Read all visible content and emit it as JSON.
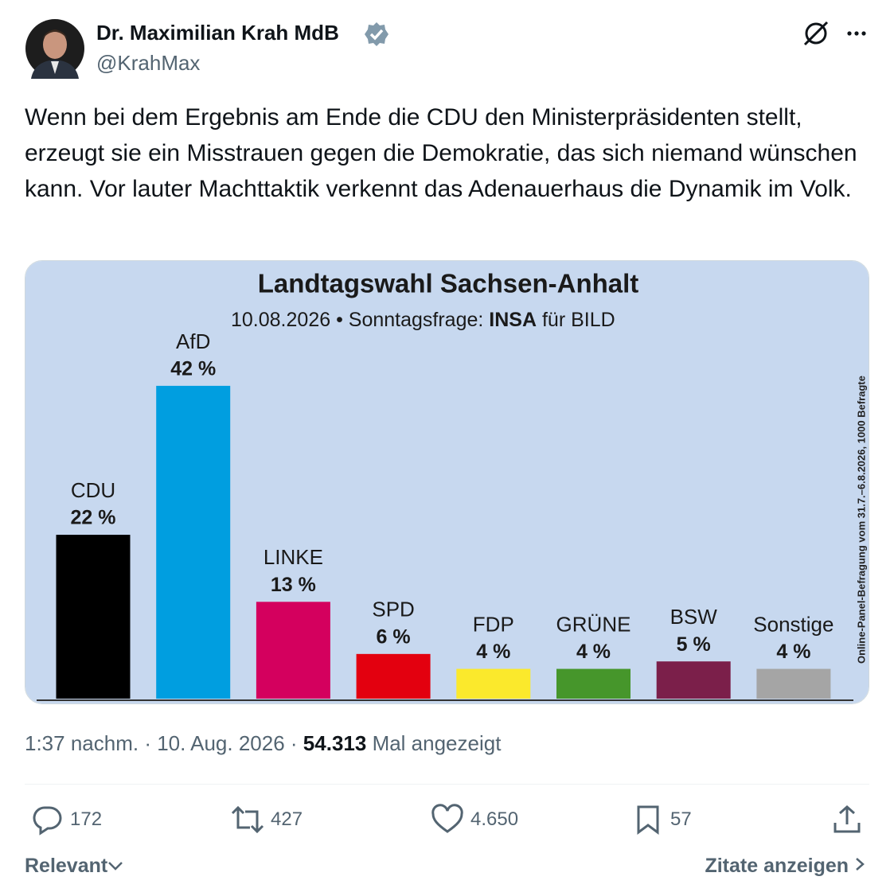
{
  "header": {
    "name": "Dr. Maximilian Krah MdB",
    "handle": "@KrahMax"
  },
  "text": "Wenn bei dem Ergebnis am Ende die CDU den Ministerpräsidenten stellt, erzeugt sie ein Misstrauen gegen die Demokratie, das sich niemand wünschen kann. Vor lauter Machttaktik verkennt das Adenauerhaus die Dynamik im Volk.",
  "chart_data": {
    "type": "bar",
    "title": "Landtagswahl Sachsen-Anhalt",
    "subtitle": [
      "10.08.2026 • Sonntagsfrage:",
      "INSA",
      "für BILD"
    ],
    "note": "Online-Panel-Befragung vom 31.7.–6.8.2026, 1000 Befragte",
    "categories": [
      "CDU",
      "AfD",
      "LINKE",
      "SPD",
      "FDP",
      "GRÜNE",
      "BSW",
      "Sonstige"
    ],
    "values": [
      22,
      42,
      13,
      6,
      4,
      4,
      5,
      4
    ],
    "value_labels": [
      "22 %",
      "42 %",
      "13 %",
      "6 %",
      "4 %",
      "4 %",
      "5 %",
      "4 %"
    ],
    "colors": [
      "#000000",
      "#009ee0",
      "#d4005e",
      "#e3000f",
      "#fbe92c",
      "#46962b",
      "#7b1f4a",
      "#a5a5a5"
    ]
  },
  "meta": {
    "time": "1:37 nachm. · 10. Aug. 2026 ·",
    "views": "54.313",
    "views_label": "Mal angezeigt"
  },
  "actions": {
    "replies": "172",
    "reposts": "427",
    "likes": "4.650",
    "bookmarks": "57"
  },
  "footer": {
    "sort": "Relevant",
    "quotes": "Zitate anzeigen"
  }
}
